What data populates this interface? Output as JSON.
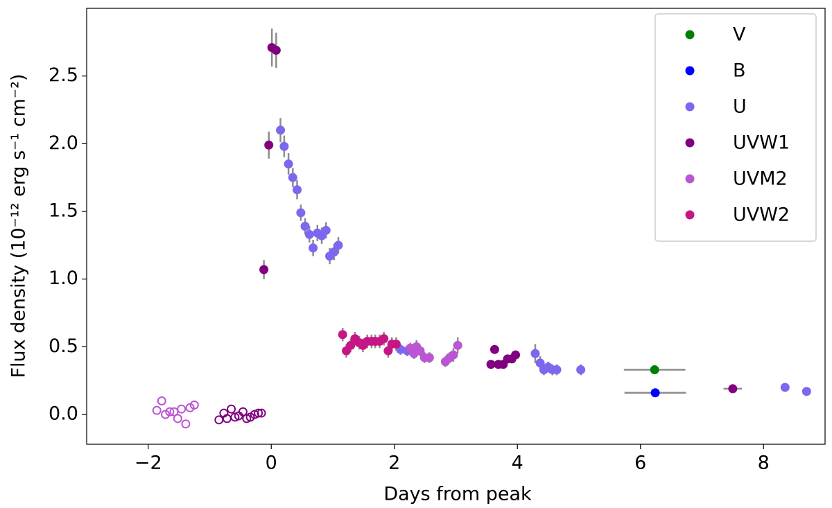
{
  "chart_data": {
    "type": "scatter",
    "x_label": "Days from peak",
    "y_label": "Flux density (10⁻¹² erg s⁻¹ cm⁻²)",
    "xlim": [
      -3,
      9
    ],
    "ylim": [
      -0.22,
      3.0
    ],
    "xticks": [
      {
        "value": -2,
        "label": "−2"
      },
      0,
      2,
      4,
      6,
      8
    ],
    "yticks": [
      {
        "value": 0,
        "label": "0.0"
      },
      0.5,
      {
        "value": 1,
        "label": "1.0"
      },
      1.5,
      {
        "value": 2,
        "label": "2.0"
      },
      2.5
    ],
    "grid": false,
    "legend": "upper right",
    "errorbar_color": "#8c8c8c",
    "series": [
      {
        "name": "V",
        "color": "#008000",
        "x": [
          6.23
        ],
        "values": [
          0.33
        ],
        "yerr": [
          0.01
        ],
        "xerr": [
          0.5
        ]
      },
      {
        "name": "B",
        "color": "#0000ff",
        "x": [
          6.24
        ],
        "values": [
          0.16
        ],
        "yerr": [
          0.01
        ],
        "xerr": [
          0.5
        ]
      },
      {
        "name": "U",
        "color": "#7b68ee",
        "x": [
          0.15,
          0.21,
          0.28,
          0.35,
          0.42,
          0.48,
          0.55,
          0.62,
          0.68,
          0.75,
          0.82,
          0.89,
          0.95,
          1.02,
          1.09,
          2.1,
          2.21,
          4.29,
          4.37,
          4.43,
          4.5,
          4.57,
          4.64,
          5.03,
          8.35,
          8.7
        ],
        "values": [
          2.1,
          1.98,
          1.85,
          1.75,
          1.66,
          1.49,
          1.39,
          1.33,
          1.23,
          1.34,
          1.32,
          1.36,
          1.17,
          1.2,
          1.25,
          0.48,
          0.47,
          0.45,
          0.38,
          0.33,
          0.35,
          0.33,
          0.33,
          0.33,
          0.2,
          0.17
        ],
        "yerr": [
          0.09,
          0.08,
          0.08,
          0.07,
          0.07,
          0.06,
          0.06,
          0.06,
          0.06,
          0.06,
          0.06,
          0.06,
          0.06,
          0.06,
          0.06,
          0.04,
          0.04,
          0.07,
          0.05,
          0.04,
          0.04,
          0.04,
          0.04,
          0.04,
          0.02,
          0.02
        ]
      },
      {
        "name": "UVW1",
        "color": "#800080",
        "x": [
          -0.12,
          -0.04,
          0.01,
          0.08,
          3.57,
          3.63,
          3.69,
          3.77,
          3.84,
          3.91,
          3.97,
          7.5
        ],
        "values": [
          1.07,
          1.99,
          2.71,
          2.69,
          0.37,
          0.48,
          0.37,
          0.37,
          0.41,
          0.41,
          0.44,
          0.19
        ],
        "yerr": [
          0.07,
          0.1,
          0.14,
          0.13,
          0.03,
          0.03,
          0.03,
          0.03,
          0.03,
          0.03,
          0.03,
          0.01
        ],
        "xerr": [
          0,
          0,
          0,
          0,
          0,
          0,
          0,
          0,
          0,
          0,
          0,
          0.15
        ],
        "open_x": [
          -0.85,
          -0.77,
          -0.72,
          -0.65,
          -0.59,
          -0.53,
          -0.46,
          -0.4,
          -0.34,
          -0.27,
          -0.21,
          -0.16
        ],
        "open_values": [
          -0.04,
          0.01,
          -0.03,
          0.04,
          -0.02,
          -0.01,
          0.02,
          -0.03,
          -0.02,
          0.0,
          0.01,
          0.01
        ]
      },
      {
        "name": "UVM2",
        "color": "#ba55d3",
        "x": [
          2.26,
          2.32,
          2.36,
          2.42,
          2.49,
          2.57,
          2.83,
          2.9,
          2.96,
          3.03
        ],
        "values": [
          0.49,
          0.45,
          0.5,
          0.47,
          0.42,
          0.42,
          0.39,
          0.42,
          0.44,
          0.51
        ],
        "yerr": [
          0.04,
          0.04,
          0.05,
          0.04,
          0.04,
          0.04,
          0.04,
          0.04,
          0.05,
          0.06
        ],
        "open_x": [
          -1.86,
          -1.78,
          -1.72,
          -1.65,
          -1.58,
          -1.52,
          -1.46,
          -1.39,
          -1.32,
          -1.25
        ],
        "open_values": [
          0.03,
          0.1,
          0.0,
          0.02,
          0.02,
          -0.03,
          0.04,
          -0.07,
          0.05,
          0.07
        ]
      },
      {
        "name": "UVW2",
        "color": "#c71585",
        "x": [
          1.16,
          1.22,
          1.29,
          1.36,
          1.43,
          1.49,
          1.56,
          1.63,
          1.69,
          1.76,
          1.83,
          1.9,
          1.96,
          2.03
        ],
        "values": [
          0.59,
          0.47,
          0.51,
          0.56,
          0.53,
          0.51,
          0.54,
          0.54,
          0.54,
          0.54,
          0.56,
          0.47,
          0.52,
          0.52
        ],
        "yerr": [
          0.05,
          0.05,
          0.05,
          0.05,
          0.05,
          0.05,
          0.05,
          0.05,
          0.05,
          0.05,
          0.05,
          0.05,
          0.05,
          0.05
        ]
      }
    ]
  }
}
